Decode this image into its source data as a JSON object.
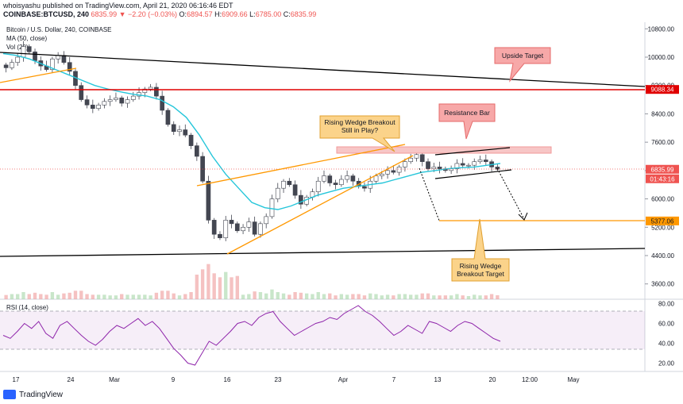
{
  "header": {
    "publisher_line": "whoisyashu published on TradingView.com, April 21, 2020 06:16:46 EDT",
    "symbol": "COINBASE:BTCUSD, 240",
    "change": "6835.99 ▼ −2.20 (−0.03%)",
    "ohlc": [
      {
        "label": "O:",
        "value": "6894.57"
      },
      {
        "label": "H:",
        "value": "6909.66"
      },
      {
        "label": "L:",
        "value": "6785.00"
      },
      {
        "label": "C:",
        "value": "6835.99"
      }
    ]
  },
  "legend": {
    "instrument": "Bitcoin / U.S. Dollar, 240, COINBASE",
    "ma": "MA (50, close)",
    "vol": "Vol (20)",
    "rsi": "RSI (14, close)"
  },
  "colors": {
    "up": "#26a69a",
    "down": "#ef5350",
    "candle": "#434651",
    "ma": "#26c6da",
    "wedge": "#ff9800",
    "trend": "#000000",
    "red_line": "#e00000",
    "rsi": "#8e24aa",
    "callout_orange": "#fbd38a",
    "callout_red": "#f7a8a8"
  },
  "footer": {
    "brand": "TradingView"
  },
  "chart_data": [
    {
      "type": "candlestick",
      "title": "Bitcoin / U.S. Dollar, 240, COINBASE",
      "x_ticks": [
        "17",
        "24",
        "Mar",
        "9",
        "16",
        "23",
        "Apr",
        "7",
        "13",
        "20",
        "12:00",
        "May"
      ],
      "y_ticks": [
        10800,
        10000,
        9200,
        8400,
        7600,
        6800,
        6000,
        5200,
        4400,
        3600
      ],
      "price_labels": [
        {
          "text": "9088.34",
          "value": 9088.34,
          "kind": "resistance"
        },
        {
          "text": "6835.99",
          "value": 6835.99,
          "kind": "last"
        },
        {
          "text": "01:43:16",
          "kind": "countdown"
        },
        {
          "text": "5377.06",
          "value": 5377.06,
          "kind": "target"
        }
      ],
      "series": [
        {
          "name": "BTCUSD close (approx.)",
          "values": [
            9700,
            9850,
            10000,
            10300,
            10150,
            9900,
            9750,
            9650,
            9950,
            10050,
            9850,
            9600,
            9200,
            8800,
            8650,
            8550,
            8650,
            8750,
            8800,
            8850,
            8700,
            8800,
            8900,
            9000,
            9100,
            9150,
            8900,
            8500,
            8100,
            7900,
            7950,
            7800,
            7500,
            7200,
            6500,
            5400,
            5000,
            4900,
            5400,
            5300,
            5100,
            5200,
            5350,
            5000,
            5300,
            5500,
            6000,
            6300,
            6500,
            6400,
            6100,
            5850,
            6050,
            6200,
            6500,
            6650,
            6450,
            6400,
            6550,
            6650,
            6500,
            6350,
            6300,
            6500,
            6650,
            6700,
            6800,
            6750,
            6900,
            7050,
            7150,
            7250,
            7050,
            6850,
            6900,
            6850,
            6800,
            6850,
            7000,
            6950,
            6950,
            7050,
            7100,
            7050,
            6900,
            6835.99
          ]
        },
        {
          "name": "MA (50, close)",
          "values": [
            10100,
            10050,
            9950,
            9800,
            9650,
            9500,
            9350,
            9200,
            9100,
            9020,
            8950,
            8900,
            8800,
            8600,
            8300,
            7800,
            7200,
            6700,
            6300,
            5900,
            5750,
            5700,
            5800,
            5950,
            6100,
            6200,
            6300,
            6350,
            6400,
            6450,
            6550,
            6650,
            6750,
            6800,
            6850,
            6880,
            6900,
            6950,
            7000
          ]
        }
      ],
      "annotations": [
        {
          "text": "Upside Target",
          "style": "red"
        },
        {
          "text": "Resistance Bar",
          "style": "red"
        },
        {
          "text": "Rising Wedge Breakout Still in Play?",
          "style": "orange"
        },
        {
          "text": "Rising Wedge Breakout Target",
          "style": "orange"
        }
      ]
    },
    {
      "type": "line",
      "title": "RSI (14, close)",
      "y_ticks": [
        "80.00",
        "60.00",
        "40.00",
        "20.00"
      ],
      "ylim": [
        10,
        82
      ],
      "bands": [
        30,
        70
      ],
      "series": [
        {
          "name": "RSI (14, close)",
          "values": [
            48,
            45,
            52,
            60,
            55,
            62,
            50,
            45,
            58,
            62,
            55,
            48,
            42,
            38,
            44,
            52,
            58,
            55,
            60,
            65,
            58,
            62,
            55,
            45,
            35,
            28,
            20,
            18,
            30,
            42,
            38,
            45,
            52,
            60,
            62,
            58,
            66,
            70,
            72,
            62,
            55,
            48,
            52,
            56,
            60,
            62,
            66,
            64,
            70,
            74,
            78,
            72,
            68,
            62,
            55,
            48,
            52,
            58,
            54,
            50,
            62,
            60,
            56,
            52,
            58,
            62,
            60,
            55,
            50,
            45,
            42
          ]
        }
      ]
    }
  ]
}
